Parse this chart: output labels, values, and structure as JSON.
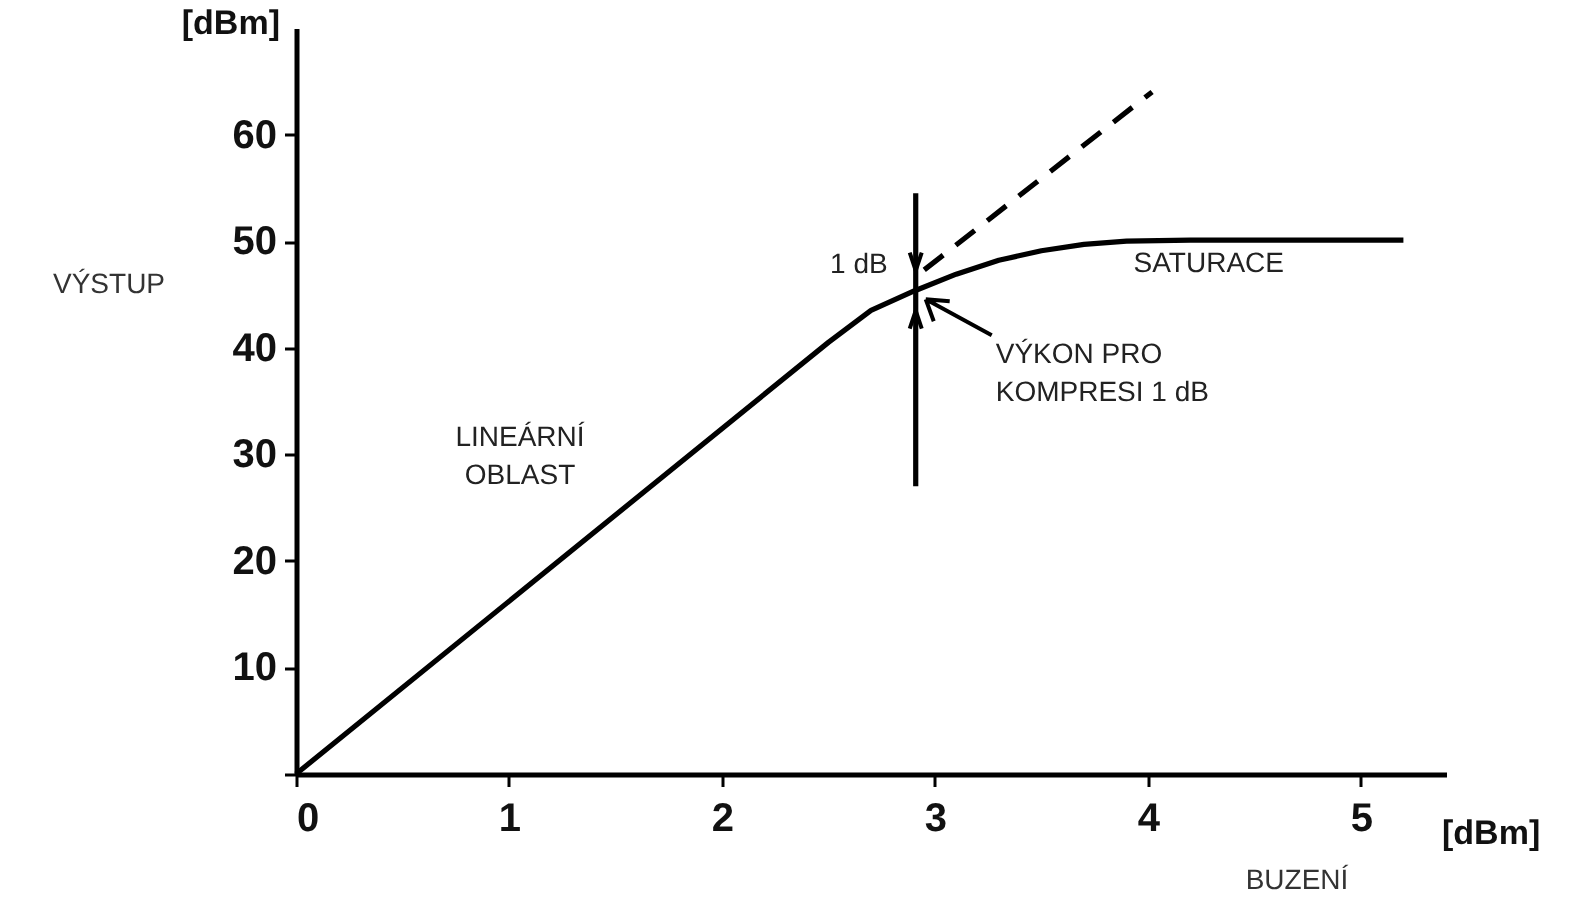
{
  "chart_data": {
    "type": "line",
    "xlabel": "BUZENÍ",
    "ylabel": "VÝSTUP",
    "xlim": [
      0,
      5.4
    ],
    "ylim": [
      0,
      70
    ],
    "xticks": [
      0,
      1,
      2,
      3,
      4,
      5
    ],
    "yticks": [
      {
        "value": 0,
        "label": null
      },
      10,
      20,
      30,
      40,
      50,
      60
    ],
    "grid": false,
    "marker": "none",
    "series": [
      {
        "color": "#000000",
        "line_style": "solid",
        "x": [
          0,
          2.5,
          2.7,
          2.9,
          3.1,
          3.3,
          3.5,
          3.7,
          3.9,
          4.2,
          5.2
        ],
        "values": [
          0,
          40.5,
          43.5,
          45.3,
          46.9,
          48.2,
          49.1,
          49.7,
          50,
          50.1,
          50.1
        ]
      },
      {
        "color": "#000000",
        "line_style": "dashed",
        "x": [
          2.95,
          4.02
        ],
        "values": [
          47.3,
          64
        ]
      },
      {
        "color": "#000000",
        "line_style": "solid",
        "x": [
          2.91,
          2.91
        ],
        "values": [
          27,
          54.5
        ]
      }
    ],
    "annotations": [
      "[dBm]",
      "[dBm]",
      "LINEÁRNÍ OBLAST",
      "SATURACE",
      {
        "text": "1 dB",
        "x": 2.91,
        "y": 46.3
      },
      {
        "text": "VÝKON PRO KOMPRESI 1 dB",
        "x": 2.91,
        "y": 45.3
      }
    ]
  }
}
